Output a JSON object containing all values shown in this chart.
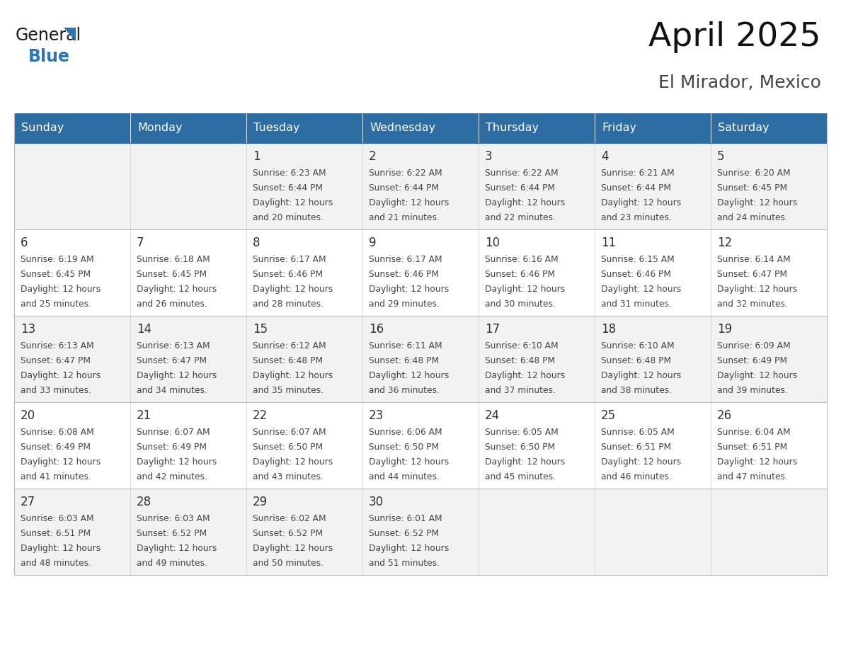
{
  "title": "April 2025",
  "subtitle": "El Mirador, Mexico",
  "header_bg": "#2E6DA4",
  "header_text_color": "#FFFFFF",
  "days_of_week": [
    "Sunday",
    "Monday",
    "Tuesday",
    "Wednesday",
    "Thursday",
    "Friday",
    "Saturday"
  ],
  "weeks": [
    [
      {
        "day": "",
        "sunrise": "",
        "sunset": "",
        "daylight": ""
      },
      {
        "day": "",
        "sunrise": "",
        "sunset": "",
        "daylight": ""
      },
      {
        "day": "1",
        "sunrise": "Sunrise: 6:23 AM",
        "sunset": "Sunset: 6:44 PM",
        "daylight": "Daylight: 12 hours\nand 20 minutes."
      },
      {
        "day": "2",
        "sunrise": "Sunrise: 6:22 AM",
        "sunset": "Sunset: 6:44 PM",
        "daylight": "Daylight: 12 hours\nand 21 minutes."
      },
      {
        "day": "3",
        "sunrise": "Sunrise: 6:22 AM",
        "sunset": "Sunset: 6:44 PM",
        "daylight": "Daylight: 12 hours\nand 22 minutes."
      },
      {
        "day": "4",
        "sunrise": "Sunrise: 6:21 AM",
        "sunset": "Sunset: 6:44 PM",
        "daylight": "Daylight: 12 hours\nand 23 minutes."
      },
      {
        "day": "5",
        "sunrise": "Sunrise: 6:20 AM",
        "sunset": "Sunset: 6:45 PM",
        "daylight": "Daylight: 12 hours\nand 24 minutes."
      }
    ],
    [
      {
        "day": "6",
        "sunrise": "Sunrise: 6:19 AM",
        "sunset": "Sunset: 6:45 PM",
        "daylight": "Daylight: 12 hours\nand 25 minutes."
      },
      {
        "day": "7",
        "sunrise": "Sunrise: 6:18 AM",
        "sunset": "Sunset: 6:45 PM",
        "daylight": "Daylight: 12 hours\nand 26 minutes."
      },
      {
        "day": "8",
        "sunrise": "Sunrise: 6:17 AM",
        "sunset": "Sunset: 6:46 PM",
        "daylight": "Daylight: 12 hours\nand 28 minutes."
      },
      {
        "day": "9",
        "sunrise": "Sunrise: 6:17 AM",
        "sunset": "Sunset: 6:46 PM",
        "daylight": "Daylight: 12 hours\nand 29 minutes."
      },
      {
        "day": "10",
        "sunrise": "Sunrise: 6:16 AM",
        "sunset": "Sunset: 6:46 PM",
        "daylight": "Daylight: 12 hours\nand 30 minutes."
      },
      {
        "day": "11",
        "sunrise": "Sunrise: 6:15 AM",
        "sunset": "Sunset: 6:46 PM",
        "daylight": "Daylight: 12 hours\nand 31 minutes."
      },
      {
        "day": "12",
        "sunrise": "Sunrise: 6:14 AM",
        "sunset": "Sunset: 6:47 PM",
        "daylight": "Daylight: 12 hours\nand 32 minutes."
      }
    ],
    [
      {
        "day": "13",
        "sunrise": "Sunrise: 6:13 AM",
        "sunset": "Sunset: 6:47 PM",
        "daylight": "Daylight: 12 hours\nand 33 minutes."
      },
      {
        "day": "14",
        "sunrise": "Sunrise: 6:13 AM",
        "sunset": "Sunset: 6:47 PM",
        "daylight": "Daylight: 12 hours\nand 34 minutes."
      },
      {
        "day": "15",
        "sunrise": "Sunrise: 6:12 AM",
        "sunset": "Sunset: 6:48 PM",
        "daylight": "Daylight: 12 hours\nand 35 minutes."
      },
      {
        "day": "16",
        "sunrise": "Sunrise: 6:11 AM",
        "sunset": "Sunset: 6:48 PM",
        "daylight": "Daylight: 12 hours\nand 36 minutes."
      },
      {
        "day": "17",
        "sunrise": "Sunrise: 6:10 AM",
        "sunset": "Sunset: 6:48 PM",
        "daylight": "Daylight: 12 hours\nand 37 minutes."
      },
      {
        "day": "18",
        "sunrise": "Sunrise: 6:10 AM",
        "sunset": "Sunset: 6:48 PM",
        "daylight": "Daylight: 12 hours\nand 38 minutes."
      },
      {
        "day": "19",
        "sunrise": "Sunrise: 6:09 AM",
        "sunset": "Sunset: 6:49 PM",
        "daylight": "Daylight: 12 hours\nand 39 minutes."
      }
    ],
    [
      {
        "day": "20",
        "sunrise": "Sunrise: 6:08 AM",
        "sunset": "Sunset: 6:49 PM",
        "daylight": "Daylight: 12 hours\nand 41 minutes."
      },
      {
        "day": "21",
        "sunrise": "Sunrise: 6:07 AM",
        "sunset": "Sunset: 6:49 PM",
        "daylight": "Daylight: 12 hours\nand 42 minutes."
      },
      {
        "day": "22",
        "sunrise": "Sunrise: 6:07 AM",
        "sunset": "Sunset: 6:50 PM",
        "daylight": "Daylight: 12 hours\nand 43 minutes."
      },
      {
        "day": "23",
        "sunrise": "Sunrise: 6:06 AM",
        "sunset": "Sunset: 6:50 PM",
        "daylight": "Daylight: 12 hours\nand 44 minutes."
      },
      {
        "day": "24",
        "sunrise": "Sunrise: 6:05 AM",
        "sunset": "Sunset: 6:50 PM",
        "daylight": "Daylight: 12 hours\nand 45 minutes."
      },
      {
        "day": "25",
        "sunrise": "Sunrise: 6:05 AM",
        "sunset": "Sunset: 6:51 PM",
        "daylight": "Daylight: 12 hours\nand 46 minutes."
      },
      {
        "day": "26",
        "sunrise": "Sunrise: 6:04 AM",
        "sunset": "Sunset: 6:51 PM",
        "daylight": "Daylight: 12 hours\nand 47 minutes."
      }
    ],
    [
      {
        "day": "27",
        "sunrise": "Sunrise: 6:03 AM",
        "sunset": "Sunset: 6:51 PM",
        "daylight": "Daylight: 12 hours\nand 48 minutes."
      },
      {
        "day": "28",
        "sunrise": "Sunrise: 6:03 AM",
        "sunset": "Sunset: 6:52 PM",
        "daylight": "Daylight: 12 hours\nand 49 minutes."
      },
      {
        "day": "29",
        "sunrise": "Sunrise: 6:02 AM",
        "sunset": "Sunset: 6:52 PM",
        "daylight": "Daylight: 12 hours\nand 50 minutes."
      },
      {
        "day": "30",
        "sunrise": "Sunrise: 6:01 AM",
        "sunset": "Sunset: 6:52 PM",
        "daylight": "Daylight: 12 hours\nand 51 minutes."
      },
      {
        "day": "",
        "sunrise": "",
        "sunset": "",
        "daylight": ""
      },
      {
        "day": "",
        "sunrise": "",
        "sunset": "",
        "daylight": ""
      },
      {
        "day": "",
        "sunrise": "",
        "sunset": "",
        "daylight": ""
      }
    ]
  ],
  "cell_bg_row0": "#F2F2F2",
  "cell_bg_row1": "#FFFFFF",
  "cell_bg_row2": "#F2F2F2",
  "cell_bg_row3": "#FFFFFF",
  "cell_bg_row4": "#F2F2F2",
  "border_color": "#BBBBBB",
  "day_num_color": "#333333",
  "info_text_color": "#444444",
  "logo_general_color": "#1a1a1a",
  "logo_blue_color": "#2E75B6",
  "header_fontsize": 11.5,
  "day_num_fontsize": 12,
  "info_fontsize": 8.8,
  "title_fontsize": 34,
  "subtitle_fontsize": 18
}
